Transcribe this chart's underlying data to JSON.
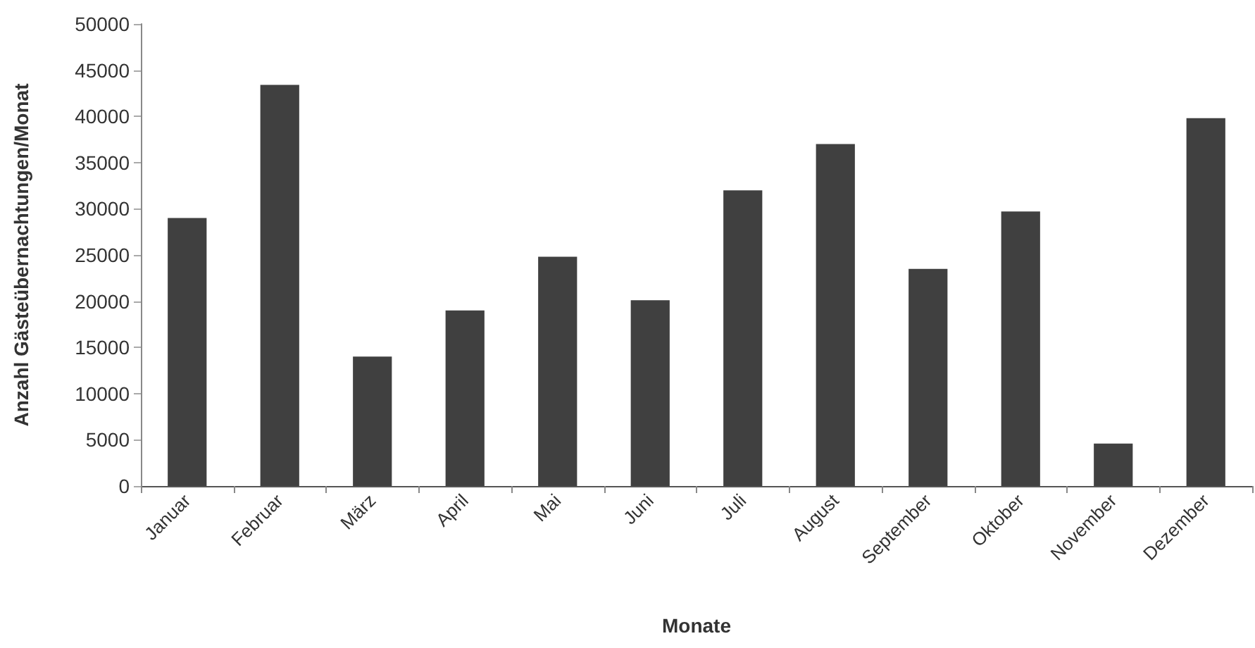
{
  "chart_data": {
    "type": "bar",
    "xlabel": "Monate",
    "ylabel": "Anzahl Gästeübernachtungen/Monat",
    "categories": [
      "Januar",
      "Februar",
      "März",
      "April",
      "Mai",
      "Juni",
      "Juli",
      "August",
      "September",
      "Oktober",
      "November",
      "Dezember"
    ],
    "values": [
      29000,
      43400,
      14000,
      19000,
      24800,
      20100,
      32000,
      37000,
      23500,
      29700,
      4600,
      39800
    ],
    "color": "#404040",
    "ylim": [
      0,
      50000
    ],
    "yticks": [
      0,
      5000,
      10000,
      15000,
      20000,
      25000,
      30000,
      35000,
      40000,
      45000,
      50000
    ],
    "grid": false
  }
}
